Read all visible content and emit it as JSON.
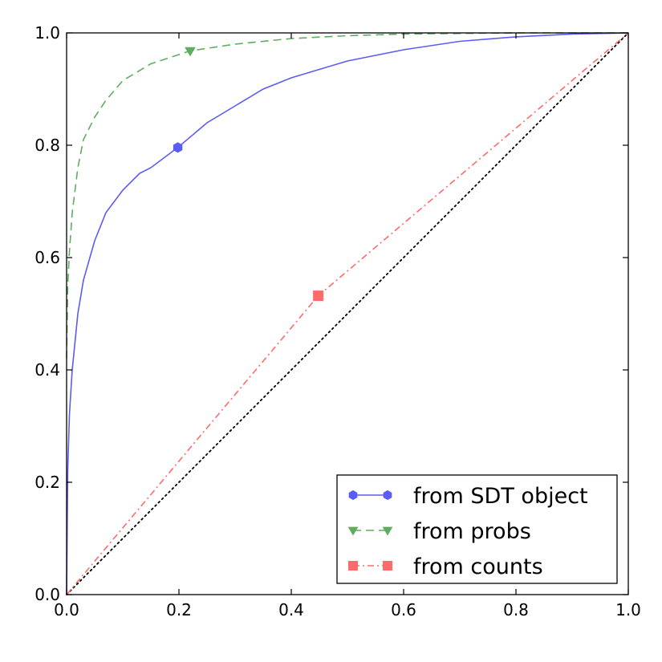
{
  "chart_data": {
    "type": "line",
    "title": "",
    "xlabel": "",
    "ylabel": "",
    "xlim": [
      0.0,
      1.0
    ],
    "ylim": [
      0.0,
      1.0
    ],
    "xticks": [
      0.0,
      0.2,
      0.4,
      0.6,
      0.8,
      1.0
    ],
    "yticks": [
      0.0,
      0.2,
      0.4,
      0.6,
      0.8,
      1.0
    ],
    "xtick_labels": [
      "0.0",
      "0.2",
      "0.4",
      "0.6",
      "0.8",
      "1.0"
    ],
    "ytick_labels": [
      "0.0",
      "0.2",
      "0.4",
      "0.6",
      "0.8",
      "1.0"
    ],
    "grid": false,
    "legend_position": "bottom-right",
    "series": [
      {
        "name": "from SDT object",
        "color": "#5b5bf5",
        "line_style": "solid",
        "marker": "hexagon",
        "x": [
          0.0,
          0.002,
          0.005,
          0.01,
          0.02,
          0.03,
          0.05,
          0.07,
          0.1,
          0.13,
          0.15,
          0.198,
          0.25,
          0.3,
          0.35,
          0.4,
          0.5,
          0.6,
          0.7,
          0.8,
          0.9,
          1.0
        ],
        "y": [
          0.0,
          0.22,
          0.32,
          0.4,
          0.5,
          0.56,
          0.63,
          0.68,
          0.72,
          0.75,
          0.76,
          0.796,
          0.84,
          0.87,
          0.9,
          0.92,
          0.95,
          0.97,
          0.985,
          0.993,
          0.998,
          1.0
        ],
        "highlight_point": [
          0.198,
          0.796
        ]
      },
      {
        "name": "from probs",
        "color": "#5fad5f",
        "line_style": "dashed",
        "marker": "triangle-down",
        "x": [
          0.0,
          0.002,
          0.005,
          0.01,
          0.02,
          0.03,
          0.05,
          0.07,
          0.1,
          0.15,
          0.22,
          0.3,
          0.4,
          0.5,
          0.6,
          0.7,
          0.8,
          0.9,
          1.0
        ],
        "y": [
          0.42,
          0.55,
          0.61,
          0.68,
          0.76,
          0.81,
          0.85,
          0.88,
          0.915,
          0.945,
          0.968,
          0.98,
          0.99,
          0.995,
          0.998,
          0.999,
          1.0,
          1.0,
          1.0
        ],
        "highlight_point": [
          0.22,
          0.968
        ]
      },
      {
        "name": "from counts",
        "color": "#ff6b6b",
        "line_style": "dashdot",
        "marker": "square",
        "x": [
          0.0,
          0.448,
          1.0
        ],
        "y": [
          0.0,
          0.532,
          1.0
        ],
        "highlight_point": [
          0.448,
          0.532
        ]
      },
      {
        "color": "#000000",
        "line_style": "dotted",
        "marker": "none",
        "x": [
          0.0,
          1.0
        ],
        "y": [
          0.0,
          1.0
        ]
      }
    ]
  }
}
